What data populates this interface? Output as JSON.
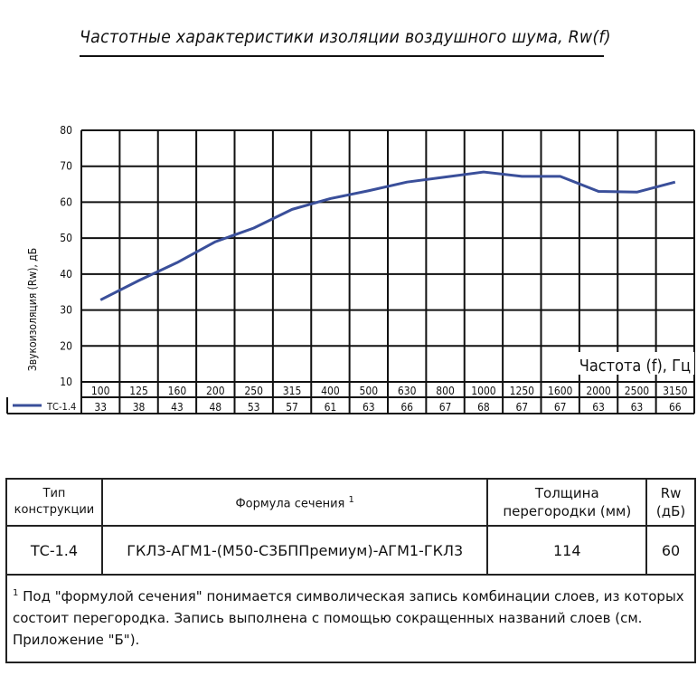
{
  "title": "Частотные характеристики изоляции воздушного шума, Rw(f)",
  "chart_data": {
    "type": "line",
    "ylabel": "Звукоизоляция (Rw), дБ",
    "xlabel": "Частота (f), Гц",
    "ylim": [
      10,
      80
    ],
    "yticks": [
      10,
      20,
      30,
      40,
      50,
      60,
      70,
      80
    ],
    "categories": [
      "100",
      "125",
      "160",
      "200",
      "250",
      "315",
      "400",
      "500",
      "630",
      "800",
      "1000",
      "1250",
      "1600",
      "2000",
      "2500",
      "3150"
    ],
    "grid": true,
    "series": [
      {
        "name": "ТС-1.4",
        "color": "#3a4f9a",
        "values": [
          33,
          38,
          43,
          48,
          53,
          57,
          61,
          63,
          66,
          67,
          68,
          67,
          67,
          63,
          63,
          66
        ],
        "curve": [
          32.8,
          38.2,
          43.2,
          49,
          52.8,
          58,
          61,
          63.2,
          65.6,
          67,
          68.4,
          67.2,
          67.2,
          63,
          62.8,
          65.6
        ]
      }
    ]
  },
  "table": {
    "headers": {
      "type": "Тип конструкции",
      "formula": "Формула сечения",
      "formula_note_mark": "1",
      "thickness": "Толщина перегородки (мм)",
      "rw": "Rw (дБ)"
    },
    "row": {
      "type": "ТС-1.4",
      "formula": "ГКЛ3-АГМ1-(М50-С3БППремиум)-АГМ1-ГКЛ3",
      "thickness": "114",
      "rw": "60"
    },
    "footnote_mark": "1",
    "footnote": "Под \"формулой сечения\" понимается символическая запись комбинации слоев, из которых состоит перегородка. Запись выполнена с помощью сокращенных названий слоев (см. Приложение \"Б\")."
  }
}
